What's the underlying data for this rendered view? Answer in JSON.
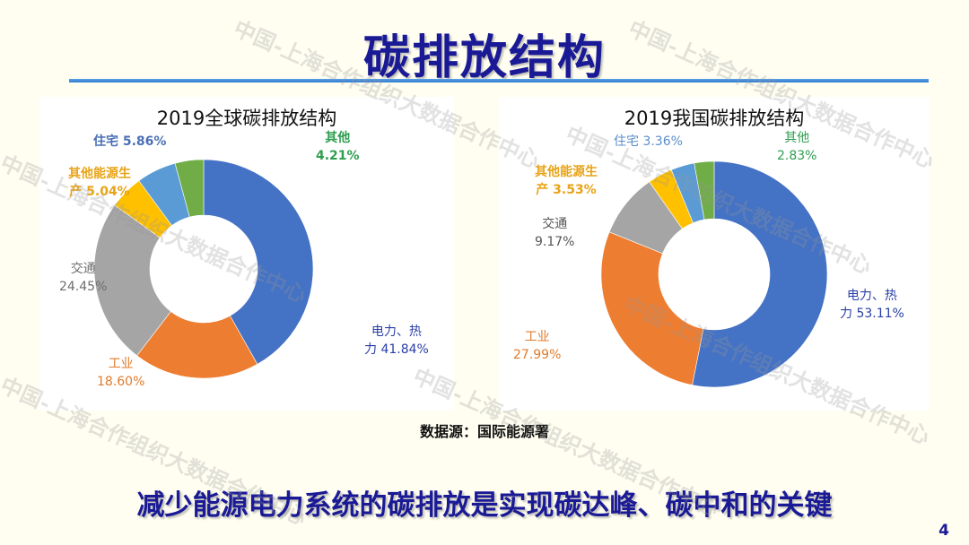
{
  "slide": {
    "title": "碳排放结构",
    "source_note": "数据源：国际能源署",
    "conclusion": "减少能源电力系统的碳排放是实现碳达峰、碳中和的关键",
    "page_number": "4",
    "watermark": "中国-上海合作组织大数据合作中心"
  },
  "colors": {
    "title": "#1A1A96",
    "rule": "#3A86DA",
    "power_heat": "#4472C4",
    "industry": "#ED7D31",
    "transport": "#A5A5A5",
    "other_energy": "#FFC000",
    "residential": "#5B9BD5",
    "other": "#70AD47"
  },
  "chart_data": [
    {
      "type": "pie",
      "variant": "donut",
      "title": "2019全球碳排放结构",
      "categories": [
        "电力、热力",
        "工业",
        "交通",
        "其他能源生产",
        "住宅",
        "其他"
      ],
      "values": [
        41.84,
        18.6,
        24.45,
        5.04,
        5.86,
        4.21
      ],
      "unit": "%",
      "labels": [
        {
          "name": "电力、热",
          "name2": "力",
          "value": "41.84%",
          "display": "电力、热\n力 41.84%"
        },
        {
          "name": "工业",
          "value": "18.60%"
        },
        {
          "name": "交通",
          "value": "24.45%"
        },
        {
          "name": "其他能源生",
          "name2": "产",
          "value": "5.04%"
        },
        {
          "name": "住宅",
          "value": "5.86%"
        },
        {
          "name": "其他",
          "value": "4.21%"
        }
      ],
      "start_angle_deg": 0,
      "direction": "clockwise"
    },
    {
      "type": "pie",
      "variant": "donut",
      "title": "2019我国碳排放结构",
      "categories": [
        "电力、热力",
        "工业",
        "交通",
        "其他能源生产",
        "住宅",
        "其他"
      ],
      "values": [
        53.11,
        27.99,
        9.17,
        3.53,
        3.36,
        2.83
      ],
      "unit": "%",
      "labels": [
        {
          "name": "电力、热",
          "name2": "力",
          "value": "53.11%"
        },
        {
          "name": "工业",
          "value": "27.99%"
        },
        {
          "name": "交通",
          "value": "9.17%"
        },
        {
          "name": "其他能源生",
          "name2": "产",
          "value": "3.53%"
        },
        {
          "name": "住宅",
          "value": "3.36%"
        },
        {
          "name": "其他",
          "value": "2.83%"
        }
      ],
      "start_angle_deg": 0,
      "direction": "clockwise"
    }
  ]
}
